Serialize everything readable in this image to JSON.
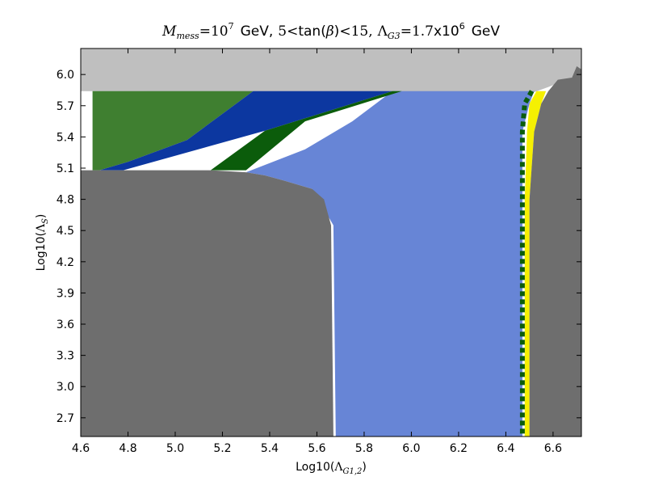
{
  "chart_data": {
    "type": "heatmap",
    "title": {
      "m_symbol": "M",
      "m_sub": "mess",
      "eq1": "=",
      "m_base": "10",
      "m_exp": "7",
      "gev1": "GeV,",
      "tan_lo": "5",
      "lt1": "<",
      "tan_text": "tan(",
      "beta": "β",
      "tan_close": ")",
      "lt2": "<",
      "tan_hi": "15,",
      "lambda_symbol": "Λ",
      "lambda_sub": "G3",
      "eq2": "=",
      "lambda_mant": "1.7",
      "lambda_x": "x10",
      "lambda_exp": "6",
      "gev2": "GeV"
    },
    "xlabel": {
      "prefix": "Log10(",
      "symbol": "Λ",
      "sub": "G1,2",
      "suffix": ")"
    },
    "ylabel": {
      "prefix": "Log10(",
      "symbol": "Λ",
      "sub": "S",
      "suffix": ")"
    },
    "xlim": [
      4.6,
      6.72
    ],
    "ylim": [
      2.52,
      6.25
    ],
    "xticks": [
      "4.6",
      "4.8",
      "5.0",
      "5.2",
      "5.4",
      "5.6",
      "5.8",
      "6.0",
      "6.2",
      "6.4",
      "6.6"
    ],
    "yticks": [
      "2.7",
      "3.0",
      "3.3",
      "3.6",
      "3.9",
      "4.2",
      "4.5",
      "4.8",
      "5.1",
      "5.4",
      "5.7",
      "6.0"
    ],
    "colors": {
      "background_region": "#bfbfbf",
      "dark_gray": "#6e6e6e",
      "light_blue": "#6785d6",
      "dark_blue": "#0c37a0",
      "green": "#3f7f30",
      "dark_green": "#0b5c0b",
      "yellow": "#f5f002"
    },
    "regions": [
      {
        "id": "top-light-gray",
        "color_key": "background_region",
        "points": [
          [
            4.6,
            6.25
          ],
          [
            6.72,
            6.25
          ],
          [
            6.72,
            6.05
          ],
          [
            6.7,
            6.08
          ],
          [
            6.68,
            5.97
          ],
          [
            6.58,
            5.88
          ],
          [
            6.52,
            5.83
          ],
          [
            4.6,
            5.84
          ]
        ]
      },
      {
        "id": "light-blue-region",
        "color_key": "light_blue",
        "points": [
          [
            5.92,
            5.84
          ],
          [
            6.52,
            5.84
          ],
          [
            6.5,
            5.72
          ],
          [
            6.47,
            5.45
          ],
          [
            6.47,
            2.52
          ],
          [
            5.68,
            2.52
          ],
          [
            5.67,
            4.55
          ],
          [
            5.58,
            4.9
          ],
          [
            5.46,
            4.98
          ],
          [
            5.38,
            5.03
          ],
          [
            5.3,
            5.06
          ],
          [
            5.55,
            5.28
          ],
          [
            5.75,
            5.55
          ]
        ]
      },
      {
        "id": "green-region",
        "color_key": "green",
        "points": [
          [
            4.65,
            5.84
          ],
          [
            5.33,
            5.84
          ],
          [
            5.05,
            5.37
          ],
          [
            4.8,
            5.16
          ],
          [
            4.68,
            5.08
          ],
          [
            4.65,
            5.08
          ]
        ]
      },
      {
        "id": "dark-blue-band",
        "color_key": "dark_blue",
        "points": [
          [
            5.33,
            5.84
          ],
          [
            5.92,
            5.84
          ],
          [
            5.38,
            5.46
          ],
          [
            4.78,
            5.08
          ],
          [
            4.68,
            5.08
          ],
          [
            4.8,
            5.16
          ],
          [
            5.05,
            5.37
          ]
        ]
      },
      {
        "id": "dark-green-band",
        "color_key": "dark_green",
        "points": [
          [
            5.92,
            5.84
          ],
          [
            5.96,
            5.84
          ],
          [
            5.55,
            5.55
          ],
          [
            5.3,
            5.08
          ],
          [
            5.15,
            5.08
          ],
          [
            5.38,
            5.46
          ]
        ]
      },
      {
        "id": "left-gray-region",
        "color_key": "dark_gray",
        "points": [
          [
            4.6,
            5.08
          ],
          [
            4.78,
            5.08
          ],
          [
            5.15,
            5.08
          ],
          [
            5.3,
            5.06
          ],
          [
            5.38,
            5.03
          ],
          [
            5.46,
            4.98
          ],
          [
            5.58,
            4.9
          ],
          [
            5.63,
            4.8
          ],
          [
            5.66,
            4.55
          ],
          [
            5.67,
            2.52
          ],
          [
            4.6,
            2.52
          ]
        ]
      },
      {
        "id": "yellow-strip",
        "color_key": "yellow",
        "points": [
          [
            6.53,
            5.84
          ],
          [
            6.57,
            5.84
          ],
          [
            6.55,
            5.72
          ],
          [
            6.52,
            5.45
          ],
          [
            6.5,
            4.8
          ],
          [
            6.5,
            2.52
          ],
          [
            6.48,
            2.52
          ],
          [
            6.48,
            4.8
          ],
          [
            6.49,
            5.45
          ],
          [
            6.5,
            5.72
          ]
        ]
      },
      {
        "id": "right-gray-region",
        "color_key": "dark_gray",
        "points": [
          [
            6.72,
            6.05
          ],
          [
            6.72,
            2.52
          ],
          [
            6.5,
            2.52
          ],
          [
            6.5,
            4.8
          ],
          [
            6.52,
            5.45
          ],
          [
            6.55,
            5.72
          ],
          [
            6.58,
            5.84
          ],
          [
            6.62,
            5.95
          ],
          [
            6.68,
            5.97
          ],
          [
            6.7,
            6.08
          ]
        ]
      },
      {
        "id": "dashed-border",
        "color_key": "dark_green",
        "dashed": true,
        "points": [
          [
            6.51,
            5.84
          ],
          [
            6.48,
            5.72
          ],
          [
            6.47,
            5.45
          ],
          [
            6.47,
            4.8
          ],
          [
            6.47,
            2.52
          ]
        ]
      }
    ]
  }
}
